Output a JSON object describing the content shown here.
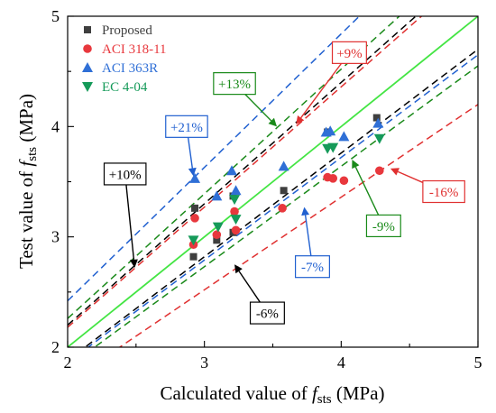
{
  "chart_data": {
    "type": "scatter",
    "xlabel": {
      "prefix": "Calculated value of ",
      "var": "f",
      "sub": "sts",
      "suffix": " (MPa)"
    },
    "ylabel": {
      "prefix": "Test value of ",
      "var": "f",
      "sub": "sts",
      "suffix": " (MPa)"
    },
    "xlim": [
      2,
      5
    ],
    "ylim": [
      2,
      5
    ],
    "xticks": [
      "2",
      "3",
      "4",
      "5"
    ],
    "yticks": [
      "2",
      "3",
      "4",
      "5"
    ],
    "legend_position": "top-left",
    "series": [
      {
        "name": "Proposed",
        "marker": "square",
        "color": "#3f3f3f",
        "x": [
          2.92,
          2.93,
          3.09,
          3.21,
          3.21,
          3.58,
          3.9,
          4.26
        ],
        "y": [
          2.82,
          3.26,
          2.97,
          3.37,
          3.04,
          3.42,
          3.95,
          4.08
        ]
      },
      {
        "name": "ACI  318-11",
        "marker": "circle",
        "color": "#e8383d",
        "x": [
          2.92,
          2.93,
          3.09,
          3.22,
          3.23,
          3.57,
          3.9,
          3.94,
          4.02,
          4.28
        ],
        "y": [
          2.93,
          3.17,
          3.02,
          3.23,
          3.06,
          3.26,
          3.54,
          3.53,
          3.51,
          3.6
        ]
      },
      {
        "name": "ACI  363R",
        "marker": "triangle-up",
        "color": "#2f6fd6",
        "x": [
          2.93,
          3.09,
          3.2,
          3.23,
          3.58,
          3.89,
          3.92,
          4.02,
          4.27
        ],
        "y": [
          3.53,
          3.37,
          3.6,
          3.42,
          3.64,
          3.95,
          3.96,
          3.91,
          4.03
        ]
      },
      {
        "name": "EC 4-04",
        "marker": "triangle-down",
        "color": "#159a59",
        "x": [
          2.92,
          3.1,
          3.22,
          3.23,
          3.9,
          3.94,
          4.28
        ],
        "y": [
          2.97,
          3.09,
          3.34,
          3.16,
          3.8,
          3.81,
          3.89
        ]
      }
    ],
    "lines": [
      {
        "kind": "solid",
        "color": "#44e544",
        "slope": 1.0
      },
      {
        "kind": "dashed",
        "color": "#e03030",
        "slope": 1.09
      },
      {
        "kind": "dashed",
        "color": "#e03030",
        "slope": 0.84
      },
      {
        "kind": "dashed",
        "color": "#2060d0",
        "slope": 1.21
      },
      {
        "kind": "dashed",
        "color": "#2060d0",
        "slope": 0.93
      },
      {
        "kind": "dashed",
        "color": "#000000",
        "slope": 1.1
      },
      {
        "kind": "dashed",
        "color": "#000000",
        "slope": 0.94
      },
      {
        "kind": "dashed",
        "color": "#1a8a1a",
        "slope": 1.13
      },
      {
        "kind": "dashed",
        "color": "#1a8a1a",
        "slope": 0.91
      }
    ],
    "annotations": [
      {
        "text": "+9%",
        "color": "#e03030",
        "label_x": 4.06,
        "label_y": 4.67,
        "arrow_to": [
          3.67,
          4.02
        ]
      },
      {
        "text": "+13%",
        "color": "#1a8a1a",
        "label_x": 3.22,
        "label_y": 4.39,
        "arrow_to": [
          3.53,
          4.0
        ]
      },
      {
        "text": "+21%",
        "color": "#2060d0",
        "label_x": 2.87,
        "label_y": 4.0,
        "arrow_to": [
          2.92,
          3.55
        ]
      },
      {
        "text": "+10%",
        "color": "#000000",
        "label_x": 2.42,
        "label_y": 3.57,
        "arrow_to": [
          2.49,
          2.72
        ]
      },
      {
        "text": "-16%",
        "color": "#e03030",
        "label_x": 4.75,
        "label_y": 3.41,
        "arrow_to": [
          4.36,
          3.62
        ]
      },
      {
        "text": "-9%",
        "color": "#1a8a1a",
        "label_x": 4.31,
        "label_y": 3.1,
        "arrow_to": [
          4.08,
          3.7
        ]
      },
      {
        "text": "-7%",
        "color": "#2060d0",
        "label_x": 3.79,
        "label_y": 2.73,
        "arrow_to": [
          3.73,
          3.27
        ]
      },
      {
        "text": "-6%",
        "color": "#000000",
        "label_x": 3.46,
        "label_y": 2.31,
        "arrow_to": [
          3.22,
          2.75
        ]
      }
    ]
  }
}
